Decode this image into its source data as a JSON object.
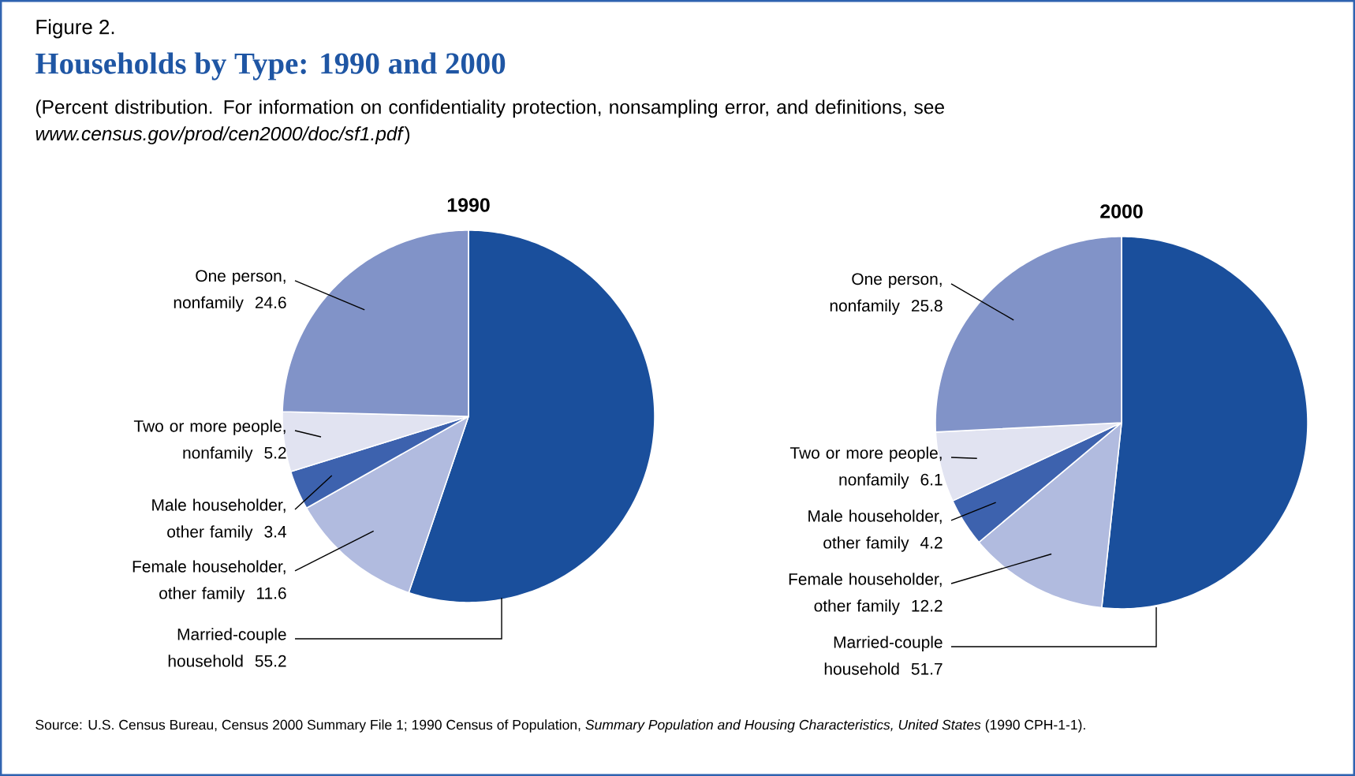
{
  "chart_data": [
    {
      "type": "other",
      "title": "Households by Type: 1990 and 2000",
      "subtitle": "(Percent distribution. For information on confidentiality protection, nonsampling error, and definitions, see *www.census.gov/prod/cen2000/doc/sf1.pdf*)",
      "annotations": [
        "Figure 2.",
        "Source: U.S. Census Bureau, Census 2000 Summary File 1; 1990 Census of Population, *Summary Population and Housing Characteristics, United States* (1990 CPH-1-1)."
      ]
    },
    {
      "type": "pie",
      "title": "1990",
      "categories": [
        "Married-couple household",
        "Female householder, other family",
        "Male householder, other family",
        "Two or more people, nonfamily",
        "One person, nonfamily"
      ],
      "values": [
        55.2,
        11.6,
        3.4,
        5.2,
        24.6
      ],
      "colors": [
        "#1a4f9c",
        "#b1bbdf",
        "#3d62ae",
        "#e1e3f1",
        "#8193c8"
      ],
      "data_labels": true
    },
    {
      "type": "pie",
      "title": "2000",
      "categories": [
        "Married-couple household",
        "Female householder, other family",
        "Male householder, other family",
        "Two or more people, nonfamily",
        "One person, nonfamily"
      ],
      "values": [
        51.7,
        12.2,
        4.2,
        6.1,
        25.8
      ],
      "colors": [
        "#1a4f9c",
        "#b1bbdf",
        "#3d62ae",
        "#e1e3f1",
        "#8193c8"
      ],
      "data_labels": true
    }
  ]
}
